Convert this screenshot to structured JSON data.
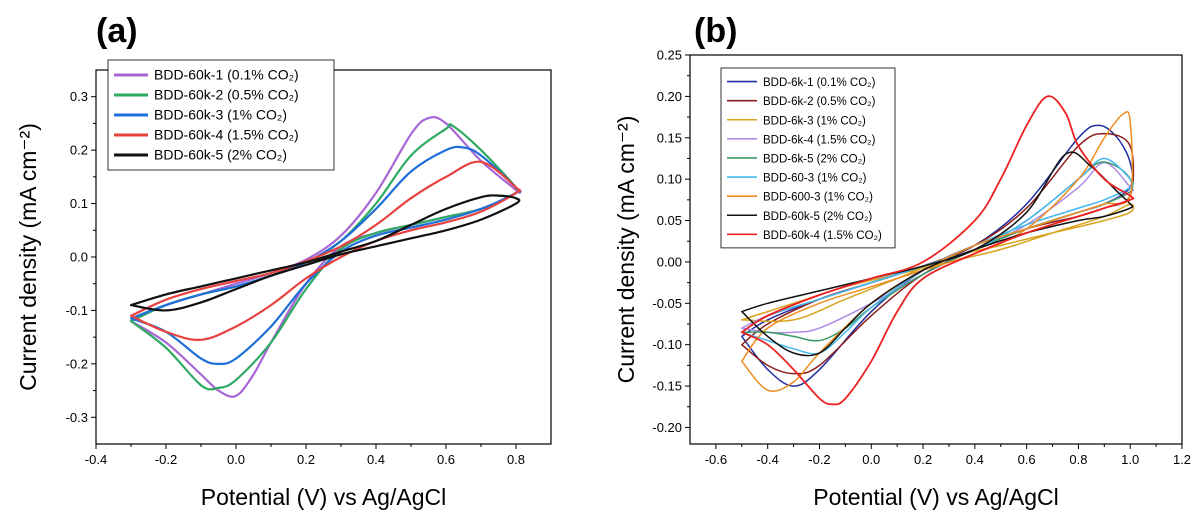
{
  "chart_data": [
    {
      "type": "line",
      "panel_label": "(a)",
      "xlabel": "Potential (V) vs Ag/AgCl",
      "ylabel": "Current density (mA cm⁻²)",
      "xlim": [
        -0.4,
        0.9
      ],
      "ylim": [
        -0.35,
        0.35
      ],
      "xticks": [
        -0.4,
        -0.2,
        0.0,
        0.2,
        0.4,
        0.6,
        0.8
      ],
      "xtick_labels": [
        "-0.4",
        "-0.2",
        "0.0",
        "0.2",
        "0.4",
        "0.6",
        "0.8"
      ],
      "yticks": [
        -0.3,
        -0.2,
        -0.1,
        0.0,
        0.1,
        0.2,
        0.3
      ],
      "ytick_labels": [
        "-0.3",
        "-0.2",
        "-0.1",
        "0.0",
        "0.1",
        "0.2",
        "0.3"
      ],
      "legend": "top-left",
      "grid": false,
      "series": [
        {
          "name": "BDD-60k-1 (0.1% CO₂)",
          "color": "#a766d6",
          "width": 2.2,
          "x": [
            -0.3,
            -0.2,
            -0.1,
            0.0,
            0.1,
            0.2,
            0.3,
            0.4,
            0.5,
            0.55,
            0.6,
            0.7,
            0.8,
            0.8,
            0.7,
            0.6,
            0.5,
            0.4,
            0.3,
            0.2,
            0.1,
            0.05,
            0.0,
            -0.05,
            -0.1,
            -0.2,
            -0.3
          ],
          "y": [
            -0.12,
            -0.09,
            -0.07,
            -0.05,
            -0.03,
            -0.005,
            0.04,
            0.12,
            0.23,
            0.26,
            0.25,
            0.18,
            0.125,
            0.12,
            0.09,
            0.075,
            0.06,
            0.045,
            0.02,
            -0.05,
            -0.16,
            -0.22,
            -0.26,
            -0.25,
            -0.22,
            -0.16,
            -0.12
          ]
        },
        {
          "name": "BDD-60k-2 (0.5% CO₂)",
          "color": "#2eaa62",
          "width": 2.2,
          "x": [
            -0.3,
            -0.2,
            -0.1,
            0.0,
            0.1,
            0.2,
            0.3,
            0.4,
            0.5,
            0.6,
            0.62,
            0.7,
            0.8,
            0.8,
            0.7,
            0.6,
            0.5,
            0.4,
            0.3,
            0.2,
            0.1,
            0.0,
            -0.05,
            -0.1,
            -0.2,
            -0.3
          ],
          "y": [
            -0.12,
            -0.09,
            -0.07,
            -0.055,
            -0.035,
            -0.01,
            0.03,
            0.1,
            0.19,
            0.24,
            0.245,
            0.2,
            0.13,
            0.12,
            0.09,
            0.075,
            0.06,
            0.045,
            0.015,
            -0.06,
            -0.16,
            -0.23,
            -0.245,
            -0.24,
            -0.17,
            -0.12
          ]
        },
        {
          "name": "BDD-60k-3 (1% CO₂)",
          "color": "#1e6fd9",
          "width": 2.2,
          "x": [
            -0.3,
            -0.2,
            -0.1,
            0.0,
            0.1,
            0.2,
            0.3,
            0.4,
            0.5,
            0.6,
            0.65,
            0.7,
            0.8,
            0.8,
            0.7,
            0.6,
            0.5,
            0.4,
            0.3,
            0.2,
            0.1,
            0.0,
            -0.05,
            -0.1,
            -0.2,
            -0.3
          ],
          "y": [
            -0.115,
            -0.09,
            -0.07,
            -0.055,
            -0.035,
            -0.01,
            0.03,
            0.09,
            0.16,
            0.2,
            0.205,
            0.19,
            0.13,
            0.12,
            0.09,
            0.07,
            0.055,
            0.04,
            0.01,
            -0.05,
            -0.13,
            -0.19,
            -0.2,
            -0.19,
            -0.14,
            -0.115
          ]
        },
        {
          "name": "BDD-60k-4 (1.5% CO₂)",
          "color": "#e8423f",
          "width": 2.2,
          "x": [
            -0.3,
            -0.2,
            -0.1,
            0.0,
            0.1,
            0.2,
            0.3,
            0.4,
            0.5,
            0.6,
            0.7,
            0.8,
            0.8,
            0.7,
            0.6,
            0.5,
            0.4,
            0.3,
            0.2,
            0.1,
            0.0,
            -0.1,
            -0.2,
            -0.3
          ],
          "y": [
            -0.11,
            -0.08,
            -0.06,
            -0.045,
            -0.03,
            -0.008,
            0.02,
            0.06,
            0.11,
            0.15,
            0.178,
            0.13,
            0.12,
            0.085,
            0.065,
            0.05,
            0.03,
            0.0,
            -0.04,
            -0.09,
            -0.13,
            -0.155,
            -0.14,
            -0.11
          ]
        },
        {
          "name": "BDD-60k-5 (2% CO₂)",
          "color": "#111111",
          "width": 2.2,
          "x": [
            -0.3,
            -0.2,
            -0.1,
            0.0,
            0.1,
            0.2,
            0.3,
            0.4,
            0.5,
            0.6,
            0.7,
            0.75,
            0.8,
            0.8,
            0.7,
            0.6,
            0.5,
            0.4,
            0.3,
            0.2,
            0.1,
            0.0,
            -0.1,
            -0.2,
            -0.3
          ],
          "y": [
            -0.09,
            -0.07,
            -0.055,
            -0.04,
            -0.025,
            -0.01,
            0.01,
            0.03,
            0.06,
            0.09,
            0.112,
            0.115,
            0.11,
            0.1,
            0.07,
            0.05,
            0.035,
            0.02,
            0.005,
            -0.015,
            -0.035,
            -0.06,
            -0.085,
            -0.1,
            -0.09
          ]
        }
      ]
    },
    {
      "type": "line",
      "panel_label": "(b)",
      "xlabel": "Potential (V) vs Ag/AgCl",
      "ylabel": "Current density (mA cm⁻²)",
      "xlim": [
        -0.7,
        1.2
      ],
      "ylim": [
        -0.22,
        0.25
      ],
      "xticks": [
        -0.6,
        -0.4,
        -0.2,
        0.0,
        0.2,
        0.4,
        0.6,
        0.8,
        1.0,
        1.2
      ],
      "xtick_labels": [
        "-0.6",
        "-0.4",
        "-0.2",
        "0.0",
        "0.2",
        "0.4",
        "0.6",
        "0.8",
        "1.0",
        "1.2"
      ],
      "yticks": [
        -0.2,
        -0.15,
        -0.1,
        -0.05,
        0.0,
        0.05,
        0.1,
        0.15,
        0.2,
        0.25
      ],
      "ytick_labels": [
        "-0.20",
        "-0.15",
        "-0.10",
        "-0.05",
        "0.00",
        "0.05",
        "0.10",
        "0.15",
        "0.20",
        "0.25"
      ],
      "legend": "top-left",
      "grid": false,
      "series": [
        {
          "name": "BDD-6k-1 (0.1% CO₂)",
          "color": "#1f2ea0",
          "width": 1.5,
          "x": [
            -0.5,
            -0.4,
            -0.2,
            0.0,
            0.2,
            0.4,
            0.6,
            0.8,
            0.88,
            0.95,
            1.0,
            1.0,
            0.9,
            0.8,
            0.6,
            0.4,
            0.2,
            0.0,
            -0.2,
            -0.3,
            -0.4,
            -0.5
          ],
          "y": [
            -0.09,
            -0.07,
            -0.045,
            -0.025,
            -0.005,
            0.02,
            0.07,
            0.15,
            0.165,
            0.15,
            0.12,
            0.09,
            0.07,
            0.06,
            0.04,
            0.02,
            -0.01,
            -0.06,
            -0.13,
            -0.15,
            -0.13,
            -0.09
          ]
        },
        {
          "name": "BDD-6k-2 (0.5% CO₂)",
          "color": "#8c1c1c",
          "width": 1.5,
          "x": [
            -0.5,
            -0.4,
            -0.2,
            0.0,
            0.2,
            0.4,
            0.6,
            0.8,
            0.9,
            1.0,
            1.0,
            0.9,
            0.8,
            0.6,
            0.4,
            0.2,
            0.0,
            -0.2,
            -0.3,
            -0.4,
            -0.5
          ],
          "y": [
            -0.1,
            -0.075,
            -0.045,
            -0.025,
            -0.005,
            0.02,
            0.065,
            0.14,
            0.155,
            0.14,
            0.08,
            0.065,
            0.055,
            0.04,
            0.015,
            -0.015,
            -0.065,
            -0.125,
            -0.135,
            -0.125,
            -0.1
          ]
        },
        {
          "name": "BDD-6k-3 (1% CO₂)",
          "color": "#d8a21e",
          "width": 1.5,
          "x": [
            -0.5,
            -0.3,
            -0.1,
            0.1,
            0.3,
            0.5,
            0.7,
            0.9,
            1.0,
            1.0,
            0.9,
            0.7,
            0.5,
            0.3,
            0.1,
            -0.1,
            -0.3,
            -0.5
          ],
          "y": [
            -0.07,
            -0.05,
            -0.03,
            -0.015,
            0.0,
            0.015,
            0.035,
            0.055,
            0.07,
            0.06,
            0.05,
            0.035,
            0.02,
            0.005,
            -0.02,
            -0.045,
            -0.07,
            -0.07
          ]
        },
        {
          "name": "BDD-6k-4 (1.5% CO₂)",
          "color": "#b08ce6",
          "width": 1.5,
          "x": [
            -0.5,
            -0.4,
            -0.2,
            0.0,
            0.2,
            0.4,
            0.6,
            0.8,
            0.9,
            1.0,
            1.0,
            0.9,
            0.8,
            0.6,
            0.4,
            0.2,
            0.0,
            -0.2,
            -0.3,
            -0.4,
            -0.5
          ],
          "y": [
            -0.08,
            -0.065,
            -0.045,
            -0.025,
            -0.005,
            0.015,
            0.045,
            0.09,
            0.12,
            0.09,
            0.085,
            0.07,
            0.06,
            0.04,
            0.015,
            -0.015,
            -0.05,
            -0.08,
            -0.085,
            -0.085,
            -0.08
          ]
        },
        {
          "name": "BDD-6k-5 (2% CO₂)",
          "color": "#3a9a6a",
          "width": 1.5,
          "x": [
            -0.5,
            -0.4,
            -0.2,
            0.0,
            0.2,
            0.4,
            0.6,
            0.8,
            0.88,
            0.95,
            1.0,
            1.0,
            0.9,
            0.8,
            0.6,
            0.4,
            0.2,
            0.0,
            -0.1,
            -0.2,
            -0.3,
            -0.4,
            -0.5
          ],
          "y": [
            -0.085,
            -0.065,
            -0.045,
            -0.025,
            -0.005,
            0.015,
            0.05,
            0.1,
            0.12,
            0.115,
            0.1,
            0.085,
            0.07,
            0.06,
            0.04,
            0.015,
            -0.015,
            -0.055,
            -0.08,
            -0.095,
            -0.09,
            -0.085,
            -0.085
          ]
        },
        {
          "name": "BDD-60-3 (1% CO₂)",
          "color": "#48b8ee",
          "width": 1.5,
          "x": [
            -0.5,
            -0.4,
            -0.2,
            0.0,
            0.2,
            0.4,
            0.6,
            0.8,
            0.9,
            1.0,
            1.0,
            0.9,
            0.8,
            0.6,
            0.4,
            0.2,
            0.0,
            -0.1,
            -0.2,
            -0.3,
            -0.4,
            -0.5
          ],
          "y": [
            -0.085,
            -0.065,
            -0.045,
            -0.025,
            -0.005,
            0.015,
            0.05,
            0.1,
            0.125,
            0.1,
            0.09,
            0.075,
            0.065,
            0.045,
            0.02,
            -0.01,
            -0.055,
            -0.085,
            -0.11,
            -0.105,
            -0.095,
            -0.085
          ]
        },
        {
          "name": "BDD-600-3 (1% CO₂)",
          "color": "#ef8c1e",
          "width": 1.5,
          "x": [
            -0.5,
            -0.4,
            -0.2,
            0.0,
            0.2,
            0.4,
            0.6,
            0.8,
            0.9,
            0.97,
            1.0,
            1.0,
            0.9,
            0.8,
            0.6,
            0.4,
            0.2,
            0.0,
            -0.2,
            -0.3,
            -0.4,
            -0.5
          ],
          "y": [
            -0.12,
            -0.08,
            -0.05,
            -0.03,
            -0.01,
            0.01,
            0.04,
            0.1,
            0.15,
            0.178,
            0.17,
            0.08,
            0.07,
            0.06,
            0.04,
            0.02,
            -0.01,
            -0.05,
            -0.11,
            -0.145,
            -0.155,
            -0.12
          ]
        },
        {
          "name": "BDD-60k-5 (2% CO₂)",
          "color": "#111111",
          "width": 1.5,
          "x": [
            -0.5,
            -0.4,
            -0.2,
            0.0,
            0.2,
            0.4,
            0.6,
            0.75,
            0.85,
            0.95,
            1.0,
            1.0,
            0.9,
            0.8,
            0.6,
            0.4,
            0.2,
            0.0,
            -0.1,
            -0.2,
            -0.3,
            -0.4,
            -0.5
          ],
          "y": [
            -0.06,
            -0.05,
            -0.035,
            -0.02,
            -0.005,
            0.015,
            0.06,
            0.13,
            0.115,
            0.085,
            0.07,
            0.065,
            0.055,
            0.05,
            0.035,
            0.015,
            -0.01,
            -0.05,
            -0.08,
            -0.11,
            -0.11,
            -0.09,
            -0.06
          ]
        },
        {
          "name": "BDD-60k-4 (1.5% CO₂)",
          "color": "#ee2020",
          "width": 1.8,
          "x": [
            -0.5,
            -0.4,
            -0.2,
            0.0,
            0.2,
            0.4,
            0.5,
            0.6,
            0.68,
            0.75,
            0.8,
            0.9,
            1.0,
            1.0,
            0.9,
            0.8,
            0.6,
            0.4,
            0.2,
            0.1,
            0.0,
            -0.1,
            -0.15,
            -0.2,
            -0.3,
            -0.4,
            -0.5
          ],
          "y": [
            -0.085,
            -0.065,
            -0.04,
            -0.02,
            0.0,
            0.05,
            0.1,
            0.165,
            0.2,
            0.18,
            0.14,
            0.1,
            0.08,
            0.075,
            0.065,
            0.055,
            0.035,
            0.01,
            -0.02,
            -0.06,
            -0.12,
            -0.165,
            -0.172,
            -0.165,
            -0.13,
            -0.1,
            -0.085
          ]
        }
      ]
    }
  ]
}
